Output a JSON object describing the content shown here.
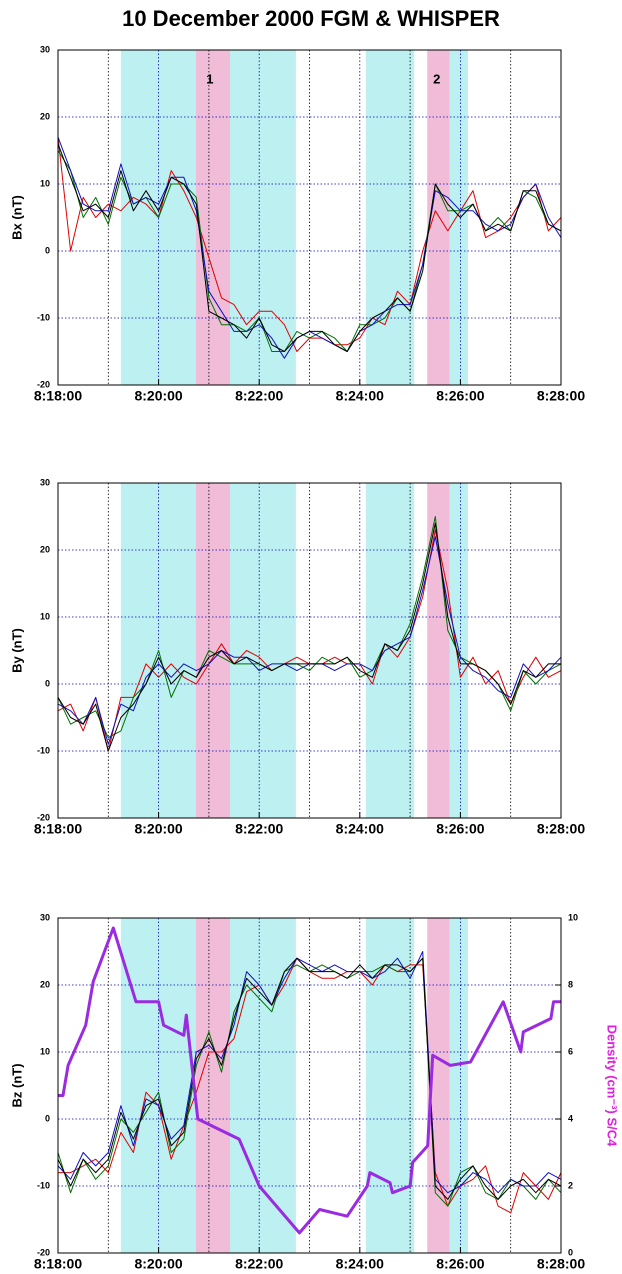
{
  "chart_data": [
    {
      "type": "line",
      "title": "10 December 2000 FGM & WHISPER",
      "y_label": "Bx (nT)",
      "x": [
        18,
        18.25,
        18.5,
        18.75,
        19,
        19.25,
        19.5,
        19.75,
        20,
        20.25,
        20.5,
        20.75,
        21,
        21.25,
        21.5,
        21.75,
        22,
        22.25,
        22.5,
        22.75,
        23,
        23.25,
        23.5,
        23.75,
        24,
        24.25,
        24.5,
        24.75,
        25,
        25.25,
        25.5,
        25.75,
        26,
        26.25,
        26.5,
        26.75,
        27,
        27.25,
        27.5,
        27.75,
        28
      ],
      "xlim": [
        18,
        28
      ],
      "xticks": [
        {
          "value": 18,
          "label": "8:18:00"
        },
        {
          "value": 20,
          "label": "8:20:00"
        },
        {
          "value": 22,
          "label": "8:22:00"
        },
        {
          "value": 24,
          "label": "8:24:00"
        },
        {
          "value": 26,
          "label": "8:26:00"
        },
        {
          "value": 28,
          "label": "8:28:00"
        }
      ],
      "xminor": [
        19,
        21,
        23,
        25,
        27
      ],
      "ylim": [
        -20,
        30
      ],
      "yticks": [
        -20,
        -10,
        0,
        10,
        20,
        30
      ],
      "grid": true,
      "regions": [
        {
          "start": 19.25,
          "end": 20.74,
          "color": "#bdf0f0"
        },
        {
          "start": 20.74,
          "end": 21.42,
          "color": "#f0bcd8"
        },
        {
          "start": 21.42,
          "end": 22.73,
          "color": "#bdf0f0"
        },
        {
          "start": 24.12,
          "end": 25.08,
          "color": "#bdf0f0"
        },
        {
          "start": 25.34,
          "end": 25.79,
          "color": "#f0bcd8"
        },
        {
          "start": 25.79,
          "end": 26.15,
          "color": "#bdf0f0"
        }
      ],
      "annotations": [
        {
          "text": "1",
          "x": 21.02,
          "y": 25.5
        },
        {
          "text": "2",
          "x": 25.53,
          "y": 25.5
        }
      ],
      "series": [
        {
          "color": "#e00000",
          "values": [
            17,
            0,
            8,
            5,
            7,
            6,
            8,
            7,
            5,
            12,
            9,
            5,
            -1,
            -7,
            -8,
            -11,
            -9,
            -9,
            -11,
            -15,
            -13,
            -13,
            -14,
            -14,
            -13,
            -10,
            -11,
            -6,
            -8,
            0,
            6,
            3,
            6,
            9,
            2,
            3,
            5,
            8,
            10,
            3,
            5
          ]
        },
        {
          "color": "#007000",
          "values": [
            15,
            12,
            5,
            8,
            4,
            11,
            7,
            8,
            5,
            10,
            10,
            8,
            -7,
            -11,
            -11,
            -12,
            -10,
            -15,
            -15,
            -12,
            -13,
            -12,
            -13,
            -15,
            -11,
            -11,
            -10,
            -7,
            -9,
            -2,
            10,
            6,
            6,
            7,
            3,
            5,
            3,
            9,
            8,
            4,
            3
          ]
        },
        {
          "color": "#1010c0",
          "values": [
            17,
            12,
            7,
            6,
            6,
            13,
            7,
            8,
            7,
            11,
            11,
            6,
            -6,
            -9,
            -12,
            -12,
            -11,
            -13,
            -16,
            -13,
            -12,
            -13,
            -14,
            -15,
            -12,
            -11,
            -9,
            -8,
            -8,
            -2,
            9,
            8,
            6,
            6,
            4,
            3,
            4,
            8,
            10,
            5,
            2
          ]
        },
        {
          "color": "#000000",
          "values": [
            16,
            11,
            6,
            7,
            5,
            12,
            6,
            9,
            6,
            11,
            10,
            7,
            -9,
            -10,
            -11,
            -13,
            -10,
            -14,
            -15,
            -13,
            -12,
            -12,
            -14,
            -15,
            -12,
            -10,
            -9,
            -7,
            -9,
            -3,
            10,
            7,
            5,
            7,
            3,
            4,
            3,
            9,
            9,
            4,
            3
          ]
        }
      ]
    },
    {
      "type": "line",
      "y_label": "By (nT)",
      "x": [
        18,
        18.25,
        18.5,
        18.75,
        19,
        19.25,
        19.5,
        19.75,
        20,
        20.25,
        20.5,
        20.75,
        21,
        21.25,
        21.5,
        21.75,
        22,
        22.25,
        22.5,
        22.75,
        23,
        23.25,
        23.5,
        23.75,
        24,
        24.25,
        24.5,
        24.75,
        25,
        25.25,
        25.5,
        25.75,
        26,
        26.25,
        26.5,
        26.75,
        27,
        27.25,
        27.5,
        27.75,
        28
      ],
      "xlim": [
        18,
        28
      ],
      "xticks": [
        {
          "value": 18,
          "label": "8:18:00"
        },
        {
          "value": 20,
          "label": "8:20:00"
        },
        {
          "value": 22,
          "label": "8:22:00"
        },
        {
          "value": 24,
          "label": "8:24:00"
        },
        {
          "value": 26,
          "label": "8:26:00"
        },
        {
          "value": 28,
          "label": "8:28:00"
        }
      ],
      "xminor": [
        19,
        21,
        23,
        25,
        27
      ],
      "ylim": [
        -20,
        30
      ],
      "yticks": [
        -20,
        -10,
        0,
        10,
        20,
        30
      ],
      "grid": true,
      "regions": [
        {
          "start": 19.25,
          "end": 20.74,
          "color": "#bdf0f0"
        },
        {
          "start": 20.74,
          "end": 21.42,
          "color": "#f0bcd8"
        },
        {
          "start": 21.42,
          "end": 22.73,
          "color": "#bdf0f0"
        },
        {
          "start": 24.12,
          "end": 25.08,
          "color": "#bdf0f0"
        },
        {
          "start": 25.34,
          "end": 25.79,
          "color": "#f0bcd8"
        },
        {
          "start": 25.79,
          "end": 26.15,
          "color": "#bdf0f0"
        }
      ],
      "series": [
        {
          "color": "#e00000",
          "values": [
            -4,
            -3,
            -7,
            -2,
            -10,
            -2,
            -2,
            3,
            1,
            3,
            1,
            0,
            3,
            6,
            3,
            5,
            4,
            2,
            3,
            4,
            3,
            3,
            4,
            3,
            3,
            0,
            6,
            4,
            7,
            13,
            23,
            14,
            1,
            4,
            0,
            2,
            -3,
            1,
            4,
            1,
            2
          ]
        },
        {
          "color": "#007000",
          "values": [
            -2,
            -6,
            -5,
            -4,
            -8,
            -7,
            -2,
            0,
            5,
            -2,
            2,
            1,
            5,
            4,
            3,
            3,
            3,
            2,
            3,
            3,
            2,
            4,
            3,
            4,
            1,
            2,
            6,
            5,
            9,
            16,
            25,
            8,
            4,
            3,
            2,
            0,
            -4,
            2,
            0,
            2,
            3
          ]
        },
        {
          "color": "#1010c0",
          "values": [
            -3,
            -4,
            -6,
            -2,
            -9,
            -3,
            -4,
            1,
            3,
            1,
            3,
            2,
            3,
            5,
            4,
            4,
            2,
            3,
            3,
            2,
            3,
            3,
            2,
            3,
            3,
            2,
            5,
            6,
            7,
            14,
            22,
            12,
            4,
            2,
            1,
            -1,
            -2,
            3,
            1,
            2,
            4
          ]
        },
        {
          "color": "#000000",
          "values": [
            -2,
            -5,
            -6,
            -3,
            -10,
            -5,
            -3,
            0,
            4,
            0,
            2,
            1,
            4,
            5,
            3,
            4,
            3,
            2,
            3,
            3,
            3,
            3,
            3,
            4,
            2,
            1,
            6,
            5,
            8,
            15,
            24,
            10,
            3,
            3,
            2,
            0,
            -3,
            2,
            1,
            3,
            3
          ]
        }
      ]
    },
    {
      "type": "line",
      "y_label": "Bz (nT)",
      "y2_label": "Density (cm⁻³) S/C4",
      "x": [
        18,
        18.25,
        18.5,
        18.75,
        19,
        19.25,
        19.5,
        19.75,
        20,
        20.25,
        20.5,
        20.75,
        21,
        21.25,
        21.5,
        21.75,
        22,
        22.25,
        22.5,
        22.75,
        23,
        23.25,
        23.5,
        23.75,
        24,
        24.25,
        24.5,
        24.75,
        25,
        25.25,
        25.5,
        25.75,
        26,
        26.25,
        26.5,
        26.75,
        27,
        27.25,
        27.5,
        27.75,
        28
      ],
      "xlim": [
        18,
        28
      ],
      "xticks": [
        {
          "value": 18,
          "label": "8:18:00"
        },
        {
          "value": 20,
          "label": "8:20:00"
        },
        {
          "value": 22,
          "label": "8:22:00"
        },
        {
          "value": 24,
          "label": "8:24:00"
        },
        {
          "value": 26,
          "label": "8:26:00"
        },
        {
          "value": 28,
          "label": "8:28:00"
        }
      ],
      "xminor": [
        19,
        21,
        23,
        25,
        27
      ],
      "ylim": [
        -20,
        30
      ],
      "yticks": [
        -20,
        -10,
        0,
        10,
        20,
        30
      ],
      "y2lim": [
        0,
        10
      ],
      "y2ticks": [
        0,
        2,
        4,
        6,
        8,
        10
      ],
      "grid": true,
      "regions": [
        {
          "start": 19.25,
          "end": 20.74,
          "color": "#bdf0f0"
        },
        {
          "start": 20.74,
          "end": 21.42,
          "color": "#f0bcd8"
        },
        {
          "start": 21.42,
          "end": 22.73,
          "color": "#bdf0f0"
        },
        {
          "start": 24.12,
          "end": 25.08,
          "color": "#bdf0f0"
        },
        {
          "start": 25.34,
          "end": 25.79,
          "color": "#f0bcd8"
        },
        {
          "start": 25.79,
          "end": 26.15,
          "color": "#bdf0f0"
        }
      ],
      "series": [
        {
          "color": "#e00000",
          "values": [
            -8,
            -8,
            -7,
            -6,
            -8,
            -2,
            -5,
            4,
            2,
            -6,
            -1,
            4,
            10,
            10,
            12,
            19,
            20,
            17,
            20,
            24,
            22,
            21,
            21,
            22,
            22,
            20,
            23,
            22,
            23,
            23,
            -8,
            -13,
            -10,
            -9,
            -7,
            -13,
            -14,
            -8,
            -10,
            -12,
            -8
          ]
        },
        {
          "color": "#007000",
          "values": [
            -5,
            -11,
            -6,
            -9,
            -7,
            0,
            -2,
            1,
            4,
            -5,
            -3,
            8,
            13,
            7,
            16,
            20,
            18,
            16,
            22,
            23,
            22,
            23,
            22,
            21,
            22,
            22,
            23,
            22,
            22,
            24,
            -11,
            -13,
            -8,
            -7,
            -11,
            -12,
            -9,
            -10,
            -12,
            -9,
            -11
          ]
        },
        {
          "color": "#1010c0",
          "values": [
            -7,
            -9,
            -5,
            -7,
            -5,
            2,
            -4,
            3,
            2,
            -3,
            -1,
            10,
            11,
            9,
            14,
            22,
            20,
            17,
            21,
            24,
            23,
            22,
            23,
            22,
            22,
            21,
            22,
            24,
            21,
            25,
            -9,
            -11,
            -10,
            -8,
            -9,
            -11,
            -9,
            -10,
            -10,
            -8,
            -9
          ]
        },
        {
          "color": "#000000",
          "values": [
            -6,
            -10,
            -6,
            -8,
            -6,
            1,
            -3,
            2,
            3,
            -4,
            -2,
            9,
            12,
            8,
            15,
            21,
            19,
            17,
            22,
            24,
            22,
            22,
            22,
            21,
            23,
            21,
            23,
            23,
            22,
            24,
            -10,
            -12,
            -9,
            -7,
            -10,
            -12,
            -10,
            -9,
            -11,
            -9,
            -10
          ]
        },
        {
          "color": "#9a2be0",
          "axis": "y2",
          "width": 3,
          "x": [
            18,
            18.1,
            18.2,
            18.55,
            18.7,
            19.1,
            19.55,
            20,
            20.1,
            20.5,
            20.55,
            20.78,
            21.6,
            22,
            22.8,
            23.2,
            23.75,
            24.15,
            24.2,
            24.6,
            24.65,
            25,
            25.05,
            25.35,
            25.45,
            25.8,
            26.2,
            26.85,
            27.2,
            27.25,
            27.8,
            27.85,
            28
          ],
          "values": [
            4.7,
            4.7,
            5.6,
            6.8,
            8.1,
            9.7,
            7.5,
            7.5,
            6.8,
            6.5,
            7.1,
            4,
            3.4,
            2,
            0.6,
            1.3,
            1.1,
            2,
            2.4,
            2.1,
            1.8,
            2,
            2.7,
            3.2,
            5.9,
            5.6,
            5.7,
            7.5,
            6,
            6.6,
            7,
            7.5,
            7.5
          ]
        }
      ]
    }
  ]
}
